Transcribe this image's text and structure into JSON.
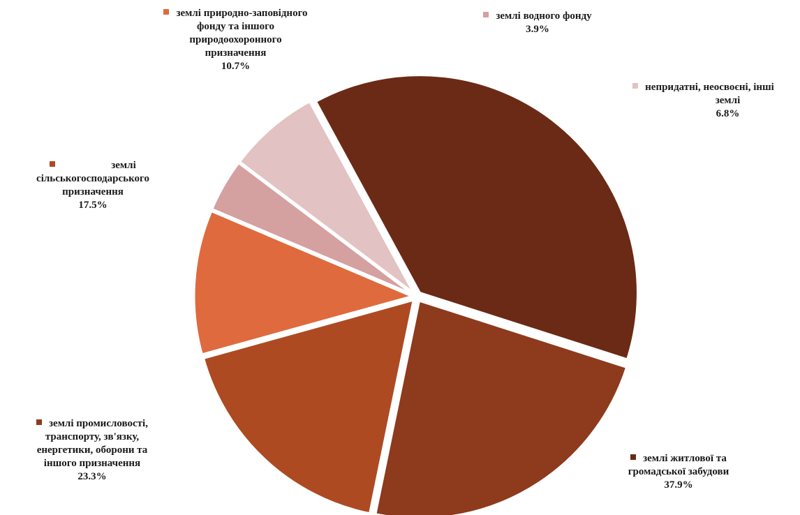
{
  "chart_data": {
    "type": "pie",
    "title": "",
    "slices": [
      {
        "lines": [
          "землі водного фонду"
        ],
        "value": 3.9,
        "label": "3.9%",
        "color": "#d4a0a0"
      },
      {
        "lines": [
          "непридатні, неосвоєні, інші",
          "землі"
        ],
        "value": 6.8,
        "label": "6.8%",
        "color": "#e2c2c2"
      },
      {
        "lines": [
          "землі житлової та",
          "громадської забудови"
        ],
        "value": 37.9,
        "label": "37.9%",
        "color": "#6b2a15"
      },
      {
        "lines": [
          "землі промисловості,",
          "транспорту, зв'язку,",
          "енергетики, оборони та",
          "іншого призначення"
        ],
        "value": 23.3,
        "label": "23.3%",
        "color": "#8e3a1d"
      },
      {
        "lines": [
          "землі",
          "сільськогосподарського",
          "призначення"
        ],
        "value": 17.5,
        "label": "17.5%",
        "color": "#ad4a22"
      },
      {
        "lines": [
          "землі природно-заповідного",
          "фонду та іншого",
          "природоохоронного",
          "призначення"
        ],
        "value": 10.7,
        "label": "10.7%",
        "color": "#df6a3e"
      }
    ]
  }
}
